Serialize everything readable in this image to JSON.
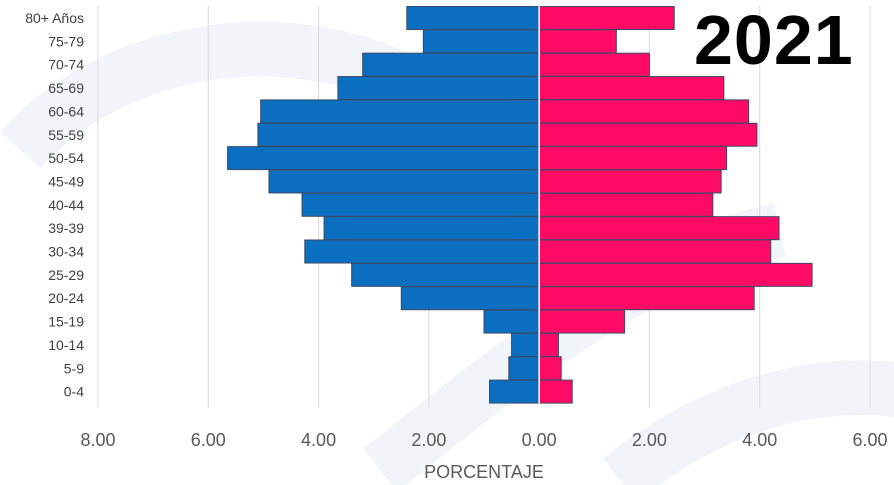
{
  "chart_data": {
    "type": "bar",
    "orientation": "horizontal-population-pyramid",
    "categories": [
      "80+ Años",
      "75-79",
      "70-74",
      "65-69",
      "60-64",
      "55-59",
      "50-54",
      "45-49",
      "40-44",
      "39-39",
      "30-34",
      "25-29",
      "20-24",
      "15-19",
      "10-14",
      "5-9",
      "0-4"
    ],
    "series": [
      {
        "side": "left",
        "color": "#0b6fc1",
        "values": [
          2.4,
          2.1,
          3.2,
          3.65,
          5.05,
          5.1,
          5.65,
          4.9,
          4.3,
          3.9,
          4.25,
          3.4,
          2.5,
          1.0,
          0.5,
          0.55,
          0.9
        ]
      },
      {
        "side": "right",
        "color": "#ff0a64",
        "values": [
          2.45,
          1.4,
          2.0,
          3.35,
          3.8,
          3.95,
          3.4,
          3.3,
          3.15,
          4.35,
          4.2,
          4.95,
          3.9,
          1.55,
          0.35,
          0.4,
          0.6
        ]
      }
    ],
    "xlim": [
      -8,
      6
    ],
    "xticks": [
      "8.00",
      "6.00",
      "4.00",
      "2.00",
      "0.00",
      "2.00",
      "4.00",
      "6.00"
    ],
    "xlabel": "PORCENTAJE",
    "annotation": "2021",
    "grid": "vertical",
    "bar_edge_color": "#3d4a66",
    "grid_color": "#d9d9d9"
  }
}
